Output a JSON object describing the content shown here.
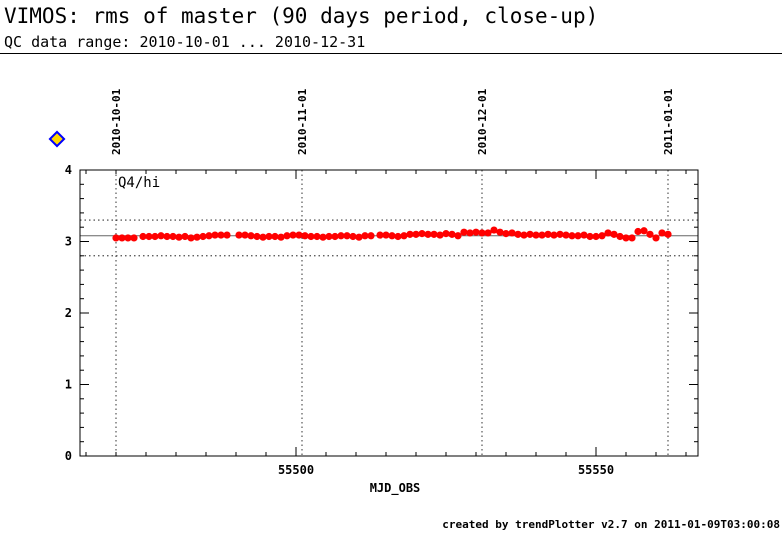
{
  "header": {
    "title": "VIMOS: rms of master (90 days period, close-up)",
    "subtitle": "QC data range: 2010-10-01 ... 2010-12-31"
  },
  "footer": {
    "text": "created by trendPlotter v2.7 on 2011-01-09T03:00:08"
  },
  "colors": {
    "points": "#ff0000",
    "reference_line": "#666666",
    "marker_fill": "#ffd700",
    "marker_border": "#0000ff"
  },
  "chart_data": {
    "type": "scatter",
    "title": "",
    "xlabel": "MJD_OBS",
    "ylabel": "",
    "panel_label": "Q4/hi",
    "xlim": [
      55464,
      55567
    ],
    "ylim": [
      0,
      4
    ],
    "x_ticks": [
      55500,
      55550
    ],
    "y_ticks": [
      0,
      1,
      2,
      3,
      4
    ],
    "reference_value": 3.08,
    "threshold_upper": 3.3,
    "threshold_lower": 2.8,
    "date_markers": [
      {
        "mjd": 55470,
        "label": "2010-10-01"
      },
      {
        "mjd": 55501,
        "label": "2010-11-01"
      },
      {
        "mjd": 55531,
        "label": "2010-12-01"
      },
      {
        "mjd": 55562,
        "label": "2011-01-01"
      }
    ],
    "series": [
      {
        "x": [
          55470,
          55471,
          55472,
          55473,
          55474.5,
          55475.5,
          55476.5,
          55477.5,
          55478.5,
          55479.5,
          55480.5,
          55481.5,
          55482.5,
          55483.5,
          55484.5,
          55485.5,
          55486.5,
          55487.5,
          55488.5,
          55490.5,
          55491.5,
          55492.5,
          55493.5,
          55494.5,
          55495.5,
          55496.5,
          55497.5,
          55498.5,
          55499.5,
          55500.5,
          55501.5,
          55502.5,
          55503.5,
          55504.5,
          55505.5,
          55506.5,
          55507.5,
          55508.5,
          55509.5,
          55510.5,
          55511.5,
          55512.5,
          55514,
          55515,
          55516,
          55517,
          55518,
          55519,
          55520,
          55521,
          55522,
          55523,
          55524,
          55525,
          55526,
          55527,
          55528,
          55529,
          55530,
          55531,
          55532,
          55533,
          55534,
          55535,
          55536,
          55537,
          55538,
          55539,
          55540,
          55541,
          55542,
          55543,
          55544,
          55545,
          55546,
          55547,
          55548,
          55549,
          55550,
          55551,
          55552,
          55553,
          55554,
          55555,
          55556,
          55557,
          55558,
          55559,
          55560,
          55561,
          55562
        ],
        "y": [
          3.05,
          3.05,
          3.05,
          3.05,
          3.07,
          3.07,
          3.07,
          3.08,
          3.07,
          3.07,
          3.06,
          3.07,
          3.05,
          3.06,
          3.07,
          3.08,
          3.09,
          3.09,
          3.09,
          3.09,
          3.09,
          3.08,
          3.07,
          3.06,
          3.07,
          3.07,
          3.06,
          3.08,
          3.09,
          3.09,
          3.08,
          3.07,
          3.07,
          3.06,
          3.07,
          3.07,
          3.08,
          3.08,
          3.07,
          3.06,
          3.08,
          3.08,
          3.09,
          3.09,
          3.08,
          3.07,
          3.08,
          3.1,
          3.1,
          3.11,
          3.1,
          3.1,
          3.09,
          3.11,
          3.1,
          3.08,
          3.13,
          3.12,
          3.13,
          3.12,
          3.12,
          3.16,
          3.13,
          3.11,
          3.12,
          3.1,
          3.09,
          3.1,
          3.09,
          3.09,
          3.1,
          3.09,
          3.1,
          3.09,
          3.08,
          3.08,
          3.09,
          3.07,
          3.07,
          3.08,
          3.12,
          3.1,
          3.07,
          3.05,
          3.05,
          3.14,
          3.15,
          3.1,
          3.05,
          3.12,
          3.1
        ]
      }
    ]
  }
}
